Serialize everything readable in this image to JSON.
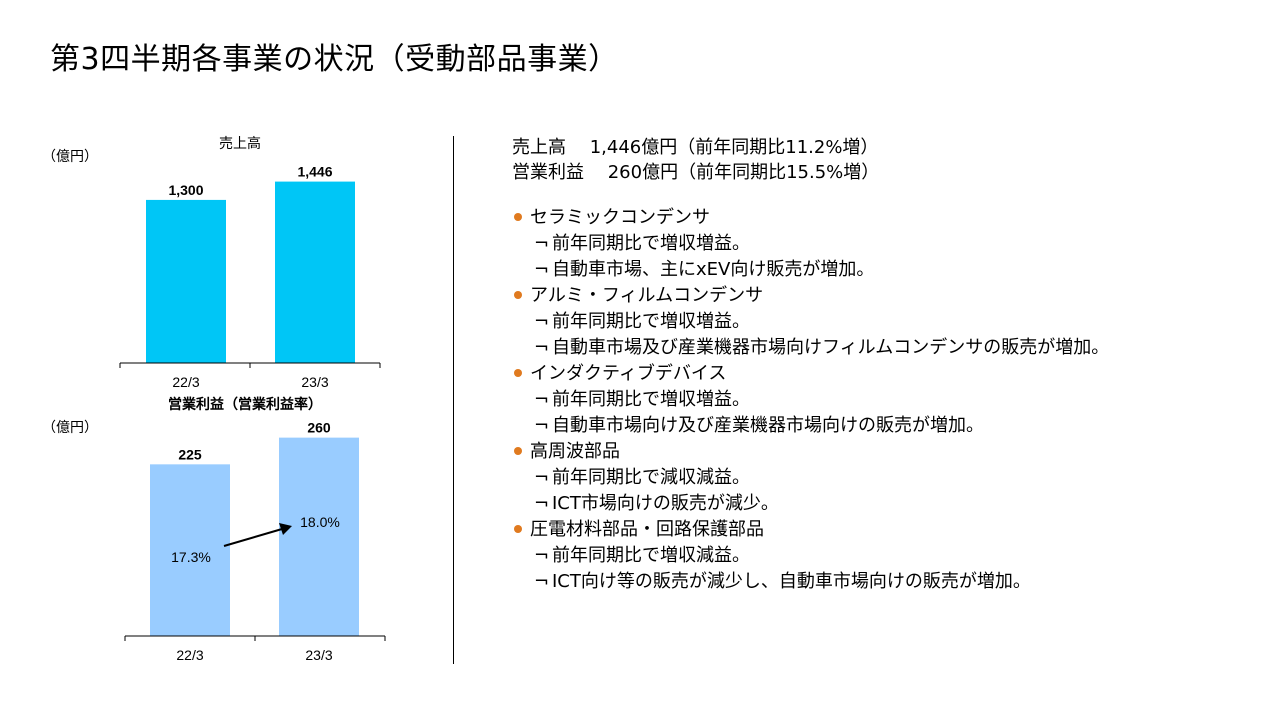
{
  "title": "第3四半期各事業の状況（受動部品事業）",
  "summary": {
    "sales_line": "売上高　 1,446億円（前年同期比11.2%増）",
    "profit_line": "営業利益　 260億円（前年同期比15.5%増）"
  },
  "bullet_color": "#e07a1f",
  "item_marker": "¬",
  "sections": [
    {
      "title": "セラミックコンデンサ",
      "items": [
        "前年同期比で増収増益。",
        "自動車市場、主にxEV向け販売が増加。"
      ]
    },
    {
      "title": "アルミ・フィルムコンデンサ",
      "items": [
        "前年同期比で増収増益。",
        "自動車市場及び産業機器市場向けフィルムコンデンサの販売が増加。"
      ]
    },
    {
      "title": "インダクティブデバイス",
      "items": [
        "前年同期比で増収増益。",
        "自動車市場向け及び産業機器市場向けの販売が増加。"
      ]
    },
    {
      "title": "高周波部品",
      "items": [
        "前年同期比で減収減益。",
        "ICT市場向けの販売が減少。"
      ]
    },
    {
      "title": "圧電材料部品・回路保護部品",
      "items": [
        "前年同期比で増収減益。",
        "ICT向け等の販売が減少し、自動車市場向けの販売が増加。"
      ]
    }
  ],
  "chart_data": [
    {
      "type": "bar",
      "title": "売上高",
      "unit": "（億円）",
      "categories": [
        "22/3",
        "23/3"
      ],
      "values": [
        1300,
        1446
      ],
      "value_labels": [
        "1,300",
        "1,446"
      ],
      "color": "#00c6f6",
      "ylim": [
        0,
        1650
      ],
      "grid": false
    },
    {
      "type": "bar",
      "title": "営業利益（営業利益率）",
      "unit": "（億円）",
      "categories": [
        "22/3",
        "23/3"
      ],
      "values": [
        225,
        260
      ],
      "value_labels": [
        "225",
        "260"
      ],
      "margin_labels": [
        "17.3%",
        "18.0%"
      ],
      "color": "#99ccff",
      "ylim": [
        0,
        270
      ],
      "grid": false
    }
  ]
}
